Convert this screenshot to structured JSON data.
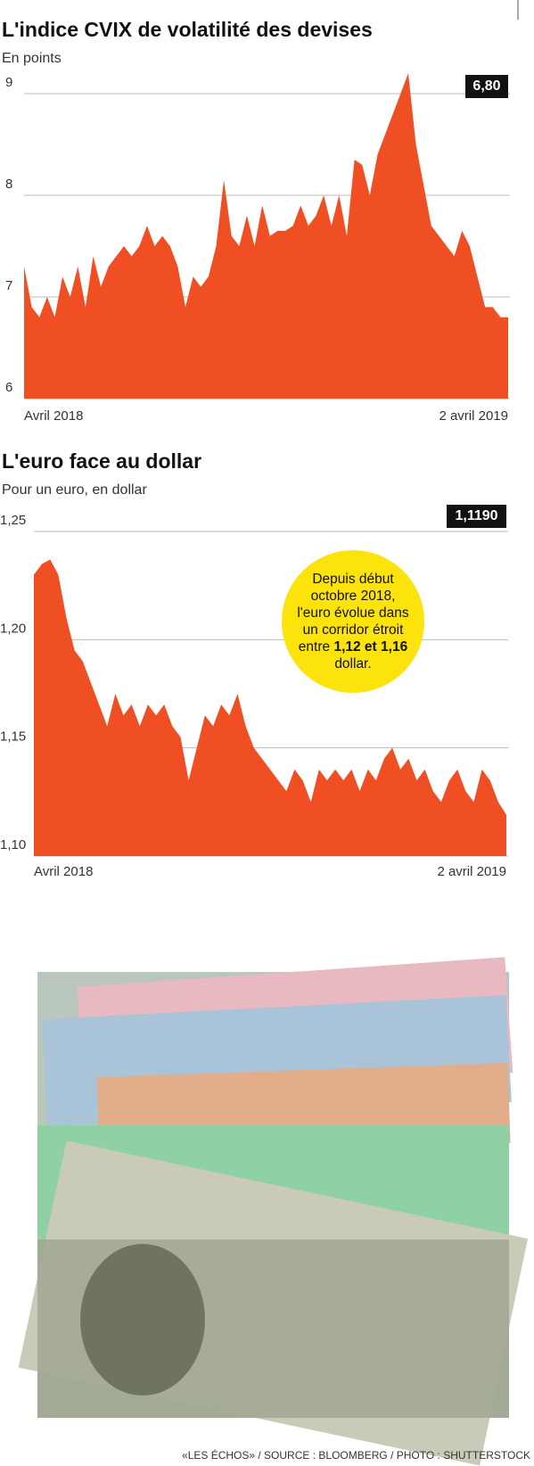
{
  "chart_data": [
    {
      "type": "area",
      "title": "L'indice CVIX de volatilité des devises",
      "subtitle": "En points",
      "color": "#f04e23",
      "categories": [
        "Avril 2018",
        null,
        null,
        null,
        null,
        null,
        null,
        null,
        null,
        null,
        null,
        null,
        null,
        null,
        null,
        null,
        null,
        null,
        null,
        null,
        null,
        null,
        null,
        null,
        null,
        null,
        null,
        null,
        null,
        null,
        null,
        null,
        null,
        null,
        null,
        null,
        null,
        null,
        null,
        null,
        null,
        null,
        null,
        null,
        null,
        null,
        null,
        null,
        null,
        null,
        null,
        null,
        null,
        null,
        null,
        null,
        null,
        null,
        null,
        null,
        null,
        null,
        null,
        "2 avril 2019"
      ],
      "values": [
        7.3,
        6.9,
        6.8,
        7.0,
        6.8,
        7.2,
        7.0,
        7.3,
        6.9,
        7.4,
        7.1,
        7.3,
        7.4,
        7.5,
        7.4,
        7.5,
        7.7,
        7.5,
        7.6,
        7.5,
        7.3,
        6.9,
        7.2,
        7.1,
        7.2,
        7.5,
        8.15,
        7.6,
        7.5,
        7.8,
        7.5,
        7.9,
        7.6,
        7.65,
        7.65,
        7.7,
        7.9,
        7.7,
        7.8,
        8.0,
        7.7,
        8.0,
        7.6,
        8.35,
        8.3,
        8.0,
        8.4,
        8.6,
        8.8,
        9.0,
        9.2,
        8.5,
        8.1,
        7.7,
        7.6,
        7.5,
        7.4,
        7.65,
        7.5,
        7.2,
        6.9,
        6.9,
        6.8,
        6.8
      ],
      "value_labels": [
        null,
        null,
        null,
        null,
        null,
        null,
        null,
        null,
        null,
        null,
        null,
        null,
        null,
        null,
        null,
        null,
        null,
        null,
        null,
        null,
        null,
        null,
        null,
        null,
        null,
        null,
        null,
        null,
        null,
        null,
        null,
        null,
        null,
        null,
        null,
        null,
        null,
        null,
        null,
        null,
        null,
        null,
        null,
        null,
        null,
        null,
        null,
        null,
        null,
        null,
        null,
        null,
        null,
        null,
        null,
        null,
        null,
        null,
        null,
        null,
        null,
        null,
        null,
        "6,80"
      ],
      "ylim": [
        6,
        9.3
      ],
      "yticks": [
        6,
        7,
        8,
        9
      ],
      "grid": true
    },
    {
      "type": "area",
      "title": "L'euro face au dollar",
      "subtitle": "Pour un euro, en dollar",
      "color": "#f04e23",
      "categories": [
        "Avril 2018",
        null,
        null,
        null,
        null,
        null,
        null,
        null,
        null,
        null,
        null,
        null,
        null,
        null,
        null,
        null,
        null,
        null,
        null,
        null,
        null,
        null,
        null,
        null,
        null,
        null,
        null,
        null,
        null,
        null,
        null,
        null,
        null,
        null,
        null,
        null,
        null,
        null,
        null,
        null,
        null,
        null,
        null,
        null,
        null,
        null,
        null,
        null,
        null,
        null,
        null,
        null,
        null,
        null,
        null,
        null,
        null,
        null,
        "2 avril 2019"
      ],
      "values": [
        1.23,
        1.235,
        1.237,
        1.23,
        1.21,
        1.195,
        1.19,
        1.18,
        1.17,
        1.16,
        1.175,
        1.165,
        1.17,
        1.16,
        1.17,
        1.165,
        1.17,
        1.16,
        1.155,
        1.135,
        1.15,
        1.165,
        1.16,
        1.17,
        1.165,
        1.175,
        1.16,
        1.15,
        1.145,
        1.14,
        1.135,
        1.13,
        1.14,
        1.135,
        1.125,
        1.14,
        1.135,
        1.14,
        1.135,
        1.14,
        1.13,
        1.14,
        1.135,
        1.145,
        1.15,
        1.14,
        1.145,
        1.135,
        1.14,
        1.13,
        1.125,
        1.135,
        1.14,
        1.13,
        1.125,
        1.14,
        1.135,
        1.125,
        1.119
      ],
      "value_labels": [
        null,
        null,
        null,
        null,
        null,
        null,
        null,
        null,
        null,
        null,
        null,
        null,
        null,
        null,
        null,
        null,
        null,
        null,
        null,
        null,
        null,
        null,
        null,
        null,
        null,
        null,
        null,
        null,
        null,
        null,
        null,
        null,
        null,
        null,
        null,
        null,
        null,
        null,
        null,
        null,
        null,
        null,
        null,
        null,
        null,
        null,
        null,
        null,
        null,
        null,
        null,
        null,
        null,
        null,
        null,
        null,
        null,
        null,
        "1,1190"
      ],
      "ylim": [
        1.1,
        1.25
      ],
      "yticks": [
        {
          "value": 1.1,
          "label": "1,10"
        },
        {
          "value": 1.15,
          "label": "1,15"
        },
        {
          "value": 1.2,
          "label": "1,20"
        },
        {
          "value": 1.25,
          "label": "1,25"
        }
      ],
      "grid": true,
      "annotation": {
        "text": "Depuis début octobre 2018, l'euro évolue dans un corridor étroit entre",
        "bold": "1,12 et 1,16",
        "after": "dollar."
      }
    }
  ],
  "source": "«LES ÉCHOS» / SOURCE : BLOOMBERG / PHOTO : SHUTTERSTOCK"
}
